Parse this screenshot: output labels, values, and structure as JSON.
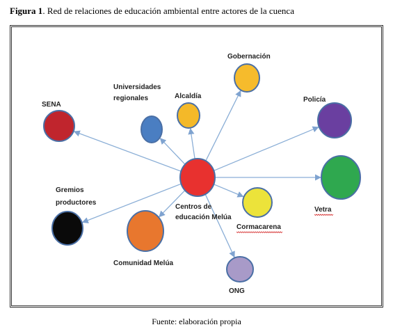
{
  "figure": {
    "number_label": "Figura 1",
    "title": ". Red de relaciones de educación ambiental entre actores de la cuenca",
    "source": "Fuente: elaboración propia"
  },
  "network": {
    "center": {
      "id": "centros",
      "label_lines": [
        "Centros de",
        "educación  Melúa"
      ],
      "color": "#e8312f"
    },
    "nodes": [
      {
        "id": "sena",
        "label_lines": [
          "SENA"
        ],
        "color": "#c0252d"
      },
      {
        "id": "universidades",
        "label_lines": [
          "Universidades",
          "regionales"
        ],
        "color": "#4a7ec2"
      },
      {
        "id": "alcaldia",
        "label_lines": [
          "Alcaldía"
        ],
        "color": "#f4b929"
      },
      {
        "id": "gobernacion",
        "label_lines": [
          "Gobernación"
        ],
        "color": "#f6bb2c"
      },
      {
        "id": "policia",
        "label_lines": [
          "Policía"
        ],
        "color": "#6a3fa0"
      },
      {
        "id": "vetra",
        "label_lines": [
          "Vetra"
        ],
        "color": "#2fa84f"
      },
      {
        "id": "cormacarena",
        "label_lines": [
          "Cormacarena"
        ],
        "color": "#ece33a"
      },
      {
        "id": "ong",
        "label_lines": [
          "ONG"
        ],
        "color": "#a89ac8"
      },
      {
        "id": "comunidad",
        "label_lines": [
          "Comunidad  Melúa"
        ],
        "color": "#e8772e"
      },
      {
        "id": "gremios",
        "label_lines": [
          "Gremios",
          "productores"
        ],
        "color": "#0a0a0a"
      }
    ],
    "edges": [
      {
        "from": "centros",
        "to": "sena"
      },
      {
        "from": "centros",
        "to": "universidades"
      },
      {
        "from": "centros",
        "to": "alcaldia"
      },
      {
        "from": "centros",
        "to": "gobernacion"
      },
      {
        "from": "centros",
        "to": "policia"
      },
      {
        "from": "centros",
        "to": "vetra"
      },
      {
        "from": "centros",
        "to": "cormacarena"
      },
      {
        "from": "centros",
        "to": "ong"
      },
      {
        "from": "centros",
        "to": "comunidad"
      },
      {
        "from": "centros",
        "to": "gremios"
      }
    ],
    "edge_color": "#8aaed6",
    "node_border_color": "#4a6fa5"
  }
}
